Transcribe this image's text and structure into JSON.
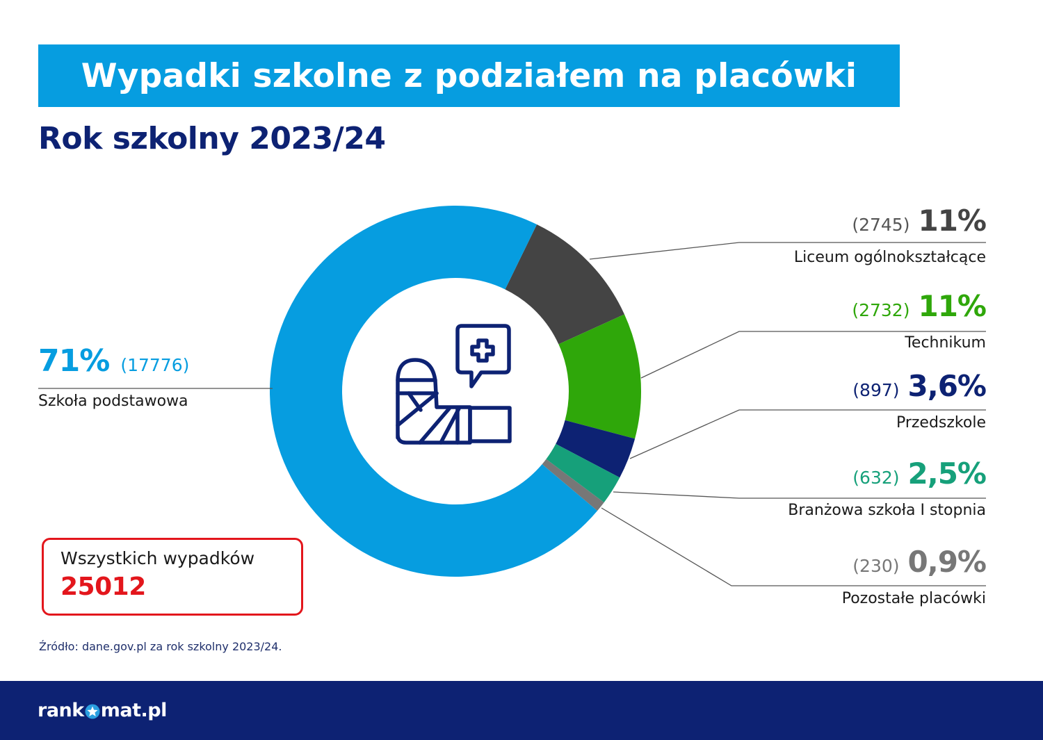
{
  "header": {
    "title": "Wypadki szkolne z podziałem na placówki",
    "subtitle": "Rok szkolny 2023/24"
  },
  "colors": {
    "title_band": "#069de0",
    "subtitle": "#0d2273",
    "total_accent": "#e3161c",
    "footer": "#0d2273",
    "leader_line": "#555555",
    "label_rule": "#999999"
  },
  "center_icon": "broken-arm-cast-with-medical-cross-speech-bubble-icon",
  "labels": {
    "szkola_podstawowa": {
      "pct": "71%",
      "count": "(17776)",
      "name": "Szkoła podstawowa"
    },
    "liceum": {
      "pct": "11%",
      "count": "(2745)",
      "name": "Liceum ogólnokształcące"
    },
    "technikum": {
      "pct": "11%",
      "count": "(2732)",
      "name": "Technikum"
    },
    "przedszkole": {
      "pct": "3,6%",
      "count": "(897)",
      "name": "Przedszkole"
    },
    "branzowa": {
      "pct": "2,5%",
      "count": "(632)",
      "name": "Branżowa szkoła I stopnia"
    },
    "pozostale": {
      "pct": "0,9%",
      "count": "(230)",
      "name": "Pozostałe placówki"
    }
  },
  "total": {
    "label": "Wszystkich wypadków",
    "value": "25012"
  },
  "source": "Źródło: dane.gov.pl za rok szkolny 2023/24.",
  "footer": {
    "logo_prefix": "rank",
    "logo_suffix": "mat.pl"
  },
  "chart_data": {
    "type": "pie",
    "variant": "donut",
    "title": "Wypadki szkolne z podziałem na placówki",
    "subtitle": "Rok szkolny 2023/24",
    "start_angle_deg": 26,
    "direction": "clockwise",
    "categories": [
      "Liceum ogólnokształcące",
      "Technikum",
      "Przedszkole",
      "Branżowa szkoła I stopnia",
      "Pozostałe placówki",
      "Szkoła podstawowa"
    ],
    "values": [
      2745,
      2732,
      897,
      632,
      230,
      17776
    ],
    "percentages": [
      11,
      11,
      3.6,
      2.5,
      0.9,
      71
    ],
    "colors": [
      "#444444",
      "#2fa70a",
      "#0d2273",
      "#16a07a",
      "#777777",
      "#069de0"
    ],
    "total": 25012,
    "legend": "leader-line labels",
    "source": "dane.gov.pl za rok szkolny 2023/24"
  }
}
